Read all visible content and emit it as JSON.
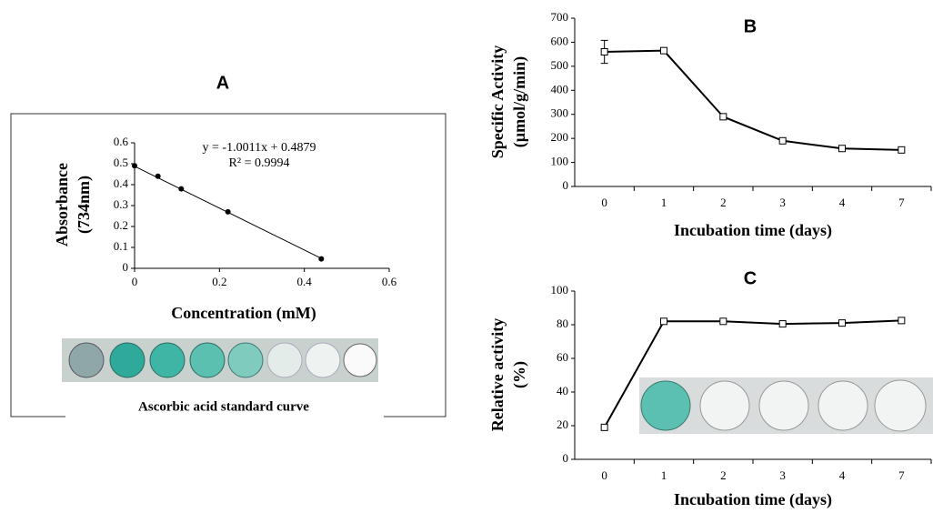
{
  "chart_data": [
    {
      "type": "scatter",
      "title": "A",
      "x_label": "Concentration (mM)",
      "y_label": [
        "Absorbance",
        "(734nm)"
      ],
      "annotations": [
        "y = -1.0011x + 0.4879",
        "R² = 0.9994"
      ],
      "caption": "Ascorbic acid standard curve",
      "x": [
        0,
        0.055,
        0.11,
        0.22,
        0.44
      ],
      "values": [
        0.49,
        0.44,
        0.38,
        0.27,
        0.045
      ],
      "trendline": {
        "slope": -1.0011,
        "intercept": 0.4879
      },
      "color": "#000000",
      "xlim": [
        0,
        0.6
      ],
      "xticks": [
        0,
        0.2,
        0.4,
        0.6
      ],
      "ylim": [
        0,
        0.6
      ],
      "yticks": [
        0,
        0.1,
        0.2,
        0.3,
        0.4,
        0.5,
        0.6
      ]
    },
    {
      "type": "line",
      "title": "B",
      "x_label": "Incubation time (days)",
      "y_label": [
        "Specific Activity",
        "(µmol/g/min)"
      ],
      "categories": [
        "0",
        "1",
        "2",
        "3",
        "4",
        "7"
      ],
      "values": [
        560,
        565,
        290,
        190,
        158,
        152
      ],
      "errors": [
        48,
        0,
        0,
        0,
        0,
        0
      ],
      "color": "#000000",
      "ylim": [
        0,
        700
      ],
      "yticks": [
        0,
        100,
        200,
        300,
        400,
        500,
        600,
        700
      ]
    },
    {
      "type": "line",
      "title": "C",
      "x_label": "Incubation time (days)",
      "y_label": [
        "Relative activity",
        "(%)"
      ],
      "categories": [
        "0",
        "1",
        "2",
        "3",
        "4",
        "7"
      ],
      "values": [
        19,
        82,
        82,
        80.5,
        81,
        82.5
      ],
      "color": "#000000",
      "ylim": [
        0,
        100
      ],
      "yticks": [
        0,
        20,
        40,
        60,
        80,
        100
      ]
    }
  ]
}
